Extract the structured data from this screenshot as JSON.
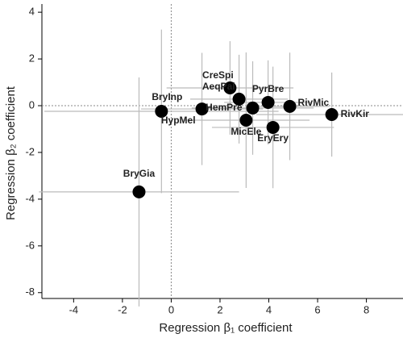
{
  "chart_data": {
    "type": "scatter",
    "x_label": "Regression β₁ coefficient",
    "y_label": "Regression β₂ coefficient",
    "labels": [
      "BryGia",
      "BryInp",
      "HypMel",
      "CreSpi",
      "AeqPal",
      "PyrBre",
      "HemPre",
      "RivMic",
      "MicEle",
      "EryEry",
      "RivKir"
    ],
    "x": [
      -1.32,
      -0.4,
      1.26,
      2.41,
      2.78,
      3.97,
      3.34,
      4.86,
      3.07,
      4.17,
      6.58
    ],
    "y": [
      -3.69,
      -0.24,
      -0.14,
      0.76,
      0.28,
      0.14,
      -0.1,
      -0.03,
      -0.62,
      -0.93,
      -0.38
    ],
    "xerr": [
      4.1,
      4.8,
      2.5,
      2.6,
      2.0,
      1.8,
      2.5,
      1.6,
      2.6,
      2.5,
      3.1
    ],
    "yerr": [
      4.9,
      3.5,
      2.4,
      2.0,
      1.9,
      1.8,
      2.0,
      2.3,
      2.9,
      2.6,
      1.8
    ],
    "color": "#000000",
    "error_color": "#bbbbbb",
    "xlim": [
      -5.3,
      9.5
    ],
    "ylim": [
      -8.25,
      4.35
    ],
    "xticks": [
      -4,
      -2,
      0,
      2,
      4,
      6,
      8
    ],
    "yticks": [
      4,
      2,
      0,
      -2,
      -4,
      -6,
      -8
    ],
    "ref_x": 0,
    "ref_y": 0
  }
}
